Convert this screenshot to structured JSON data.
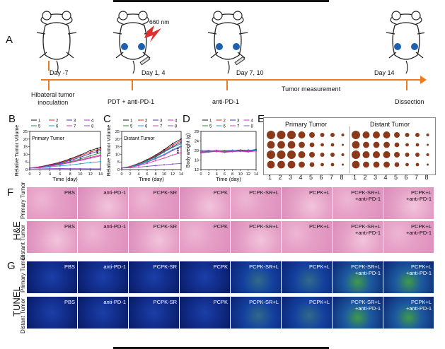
{
  "panels": {
    "a": "A",
    "b": "B",
    "c": "C",
    "d": "D",
    "e": "E",
    "f": "F",
    "g": "G"
  },
  "timeline": {
    "days": [
      "Day -7",
      "Day 1, 4",
      "Day 7, 10",
      "Day 14"
    ],
    "events": [
      "Hibateral tumor",
      "inoculation",
      "PDT + anti-PD-1",
      "anti-PD-1",
      "Dissection"
    ],
    "measurement": "Tumor measurement",
    "laser": "660 nm"
  },
  "chart_data": [
    {
      "type": "line",
      "title": "Primary Tumor",
      "xlabel": "Time (day)",
      "ylabel": "Relative Tumor Volume",
      "x": [
        0,
        2,
        4,
        6,
        8,
        10,
        12,
        14
      ],
      "xlim": [
        0,
        14
      ],
      "ylim": [
        0,
        25
      ],
      "yticks": [
        0,
        5,
        10,
        15,
        20,
        25
      ],
      "xticks": [
        0,
        2,
        4,
        6,
        8,
        10,
        12,
        14
      ],
      "legend": [
        "1",
        "2",
        "3",
        "4",
        "5",
        "6",
        "7",
        "8"
      ],
      "colors": [
        "#111111",
        "#e22222",
        "#3030d0",
        "#cc22cc",
        "#228833",
        "#1a9fd0",
        "#d040a0",
        "#8a4cc8"
      ],
      "series": [
        {
          "name": "1",
          "values": [
            1,
            1.8,
            3.2,
            4.8,
            7,
            9.5,
            12.5,
            14.5
          ]
        },
        {
          "name": "2",
          "values": [
            1,
            1.7,
            3,
            4.6,
            6.5,
            9,
            11.5,
            13.5
          ]
        },
        {
          "name": "3",
          "values": [
            1,
            1.6,
            2.8,
            4.2,
            6,
            8,
            10.5,
            12.5
          ]
        },
        {
          "name": "4",
          "values": [
            1,
            1.4,
            2.2,
            3.2,
            4.6,
            6,
            7.5,
            9
          ]
        },
        {
          "name": "5",
          "values": [
            1,
            1.5,
            2.6,
            3.8,
            5.2,
            7,
            9,
            11
          ]
        },
        {
          "name": "6",
          "values": [
            1,
            1.3,
            1.8,
            2.4,
            3,
            3.8,
            4.6,
            5.2
          ]
        },
        {
          "name": "7",
          "values": [
            1,
            1.5,
            2.4,
            3.5,
            4.8,
            6.3,
            8,
            9.5
          ]
        },
        {
          "name": "8",
          "values": [
            1,
            0.9,
            0.8,
            0.7,
            0.6,
            0.6,
            0.5,
            0.5
          ]
        }
      ],
      "annotation": "***"
    },
    {
      "type": "line",
      "title": "Distant Tumor",
      "xlabel": "Time (day)",
      "ylabel": "Relative Tumor Volume",
      "x": [
        0,
        2,
        4,
        6,
        8,
        10,
        12,
        14
      ],
      "xlim": [
        0,
        14
      ],
      "ylim": [
        0,
        25
      ],
      "yticks": [
        0,
        5,
        10,
        15,
        20,
        25
      ],
      "xticks": [
        0,
        2,
        4,
        6,
        8,
        10,
        12,
        14
      ],
      "legend": [
        "1",
        "2",
        "3",
        "4",
        "5",
        "6",
        "7",
        "8"
      ],
      "colors": [
        "#111111",
        "#e22222",
        "#3030d0",
        "#cc22cc",
        "#228833",
        "#1a9fd0",
        "#d040a0",
        "#8a4cc8"
      ],
      "series": [
        {
          "name": "1",
          "values": [
            1,
            2,
            4,
            6.5,
            9.5,
            13,
            17,
            20
          ]
        },
        {
          "name": "2",
          "values": [
            1,
            1.9,
            3.8,
            6.2,
            9,
            12.5,
            16,
            19
          ]
        },
        {
          "name": "3",
          "values": [
            1,
            1.8,
            3.6,
            6,
            8.5,
            12,
            15,
            18
          ]
        },
        {
          "name": "4",
          "values": [
            1,
            1.6,
            3,
            4.8,
            7,
            9.5,
            12.5,
            15
          ]
        },
        {
          "name": "5",
          "values": [
            1,
            1.8,
            3.5,
            5.8,
            8.2,
            11.5,
            14.5,
            17
          ]
        },
        {
          "name": "6",
          "values": [
            1,
            1.7,
            3.2,
            5.2,
            7.5,
            10,
            13,
            15.5
          ]
        },
        {
          "name": "7",
          "values": [
            1,
            1.5,
            2.6,
            4,
            5.8,
            7.5,
            9.5,
            11
          ]
        },
        {
          "name": "8",
          "values": [
            1,
            1.2,
            1.6,
            2.1,
            2.6,
            3.1,
            3.6,
            4
          ]
        }
      ],
      "annotation": "***"
    },
    {
      "type": "line",
      "title": "",
      "xlabel": "Time (day)",
      "ylabel": "Body weight (g)",
      "x": [
        0,
        2,
        4,
        6,
        8,
        10,
        12,
        14
      ],
      "xlim": [
        0,
        14
      ],
      "ylim": [
        12,
        28
      ],
      "yticks": [
        12,
        16,
        20,
        24,
        28
      ],
      "xticks": [
        0,
        2,
        4,
        6,
        8,
        10,
        12,
        14
      ],
      "legend": [
        "1",
        "2",
        "3",
        "4",
        "5",
        "6",
        "7",
        "8"
      ],
      "colors": [
        "#111111",
        "#e22222",
        "#3030d0",
        "#cc22cc",
        "#228833",
        "#1a9fd0",
        "#d040a0",
        "#8a4cc8"
      ],
      "series": [
        {
          "name": "1",
          "values": [
            19.5,
            19.8,
            20,
            19.6,
            19.9,
            20.2,
            20,
            20.4
          ]
        },
        {
          "name": "2",
          "values": [
            19.2,
            19.5,
            19.7,
            19.4,
            19.6,
            19.8,
            19.7,
            20
          ]
        },
        {
          "name": "3",
          "values": [
            19.8,
            20,
            19.6,
            19.9,
            20.1,
            19.8,
            20.2,
            20.1
          ]
        },
        {
          "name": "4",
          "values": [
            19,
            19.3,
            19.6,
            19.2,
            19.5,
            19.7,
            19.4,
            19.8
          ]
        },
        {
          "name": "5",
          "values": [
            19.6,
            19.4,
            19.8,
            20,
            19.7,
            19.9,
            20.1,
            19.9
          ]
        },
        {
          "name": "6",
          "values": [
            20,
            19.7,
            19.9,
            19.6,
            20,
            19.8,
            19.9,
            20.2
          ]
        },
        {
          "name": "7",
          "values": [
            19.4,
            19.9,
            19.5,
            19.8,
            19.6,
            20,
            19.8,
            19.7
          ]
        },
        {
          "name": "8",
          "values": [
            19.7,
            19.6,
            20.1,
            19.7,
            19.8,
            19.6,
            20,
            19.9
          ]
        }
      ]
    }
  ],
  "photo": {
    "primary": "Primary Tumor",
    "distant": "Distant Tumor",
    "numbers": [
      "1",
      "2",
      "3",
      "4",
      "5",
      "6",
      "7",
      "8"
    ]
  },
  "side": {
    "he": "H&E",
    "tunel": "TUNEL",
    "primary": "Primary Tumor",
    "distant": "Distant Tumor"
  },
  "groups": [
    "PBS",
    "anti-PD-1",
    "PCPK-SR",
    "PCPK",
    "PCPK-SR+L",
    "PCPK+L",
    "PCPK-SR+L\n+anti-PD-1",
    "PCPK+L\n+anti-PD-1"
  ]
}
